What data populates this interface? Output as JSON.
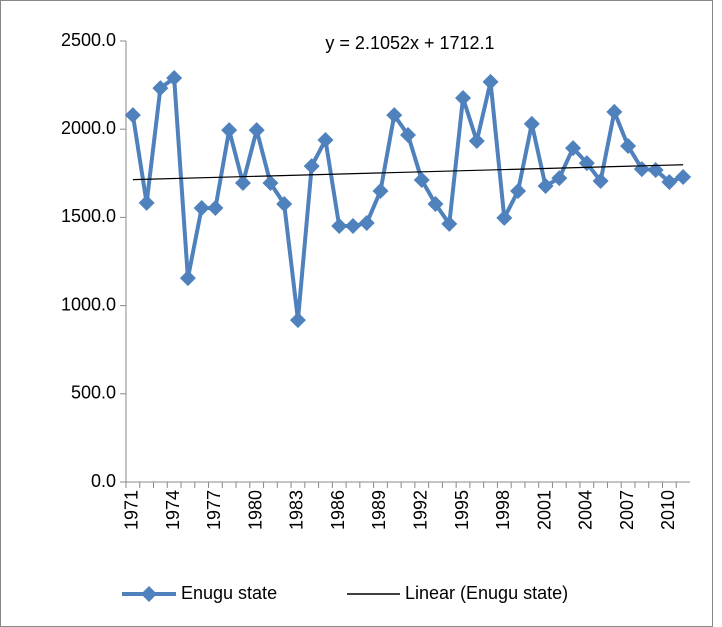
{
  "chart_data": {
    "type": "line",
    "annotation": "y = 2.1052x + 1712.1",
    "categories": [
      "1971",
      null,
      null,
      "1974",
      null,
      null,
      "1977",
      null,
      null,
      "1980",
      null,
      null,
      "1983",
      null,
      null,
      "1986",
      null,
      null,
      "1989",
      null,
      null,
      "1992",
      null,
      null,
      "1995",
      null,
      null,
      "1998",
      null,
      null,
      "2001",
      null,
      null,
      "2004",
      null,
      null,
      "2007",
      null,
      null,
      "2010",
      null
    ],
    "series": [
      {
        "name": "Enugu state",
        "color": "#4f81bd",
        "values": [
          2080,
          1582,
          2233,
          2290,
          1156,
          1553,
          1553,
          1995,
          1695,
          1995,
          1695,
          1576,
          918,
          1791,
          1939,
          1451,
          1451,
          1468,
          1650,
          2080,
          1967,
          1712,
          1576,
          1463,
          2177,
          1933,
          2268,
          1497,
          1650,
          2030,
          1678,
          1723,
          1893,
          1808,
          1706,
          2098,
          1905,
          1774,
          1769,
          1701,
          1729
        ]
      }
    ],
    "trendline": {
      "name": "Linear (Enugu state)",
      "color": "#000000",
      "slope": 2.1052,
      "intercept": 1712.1
    },
    "ylim": [
      0,
      2500
    ],
    "yticks": [
      {
        "value": 0,
        "label": "0.0"
      },
      {
        "value": 500,
        "label": "500.0"
      },
      {
        "value": 1000,
        "label": "1000.0"
      },
      {
        "value": 1500,
        "label": "1500.0"
      },
      {
        "value": 2000,
        "label": "2000.0"
      },
      {
        "value": 2500,
        "label": "2500.0"
      }
    ],
    "grid": false,
    "legend": "bottom"
  }
}
